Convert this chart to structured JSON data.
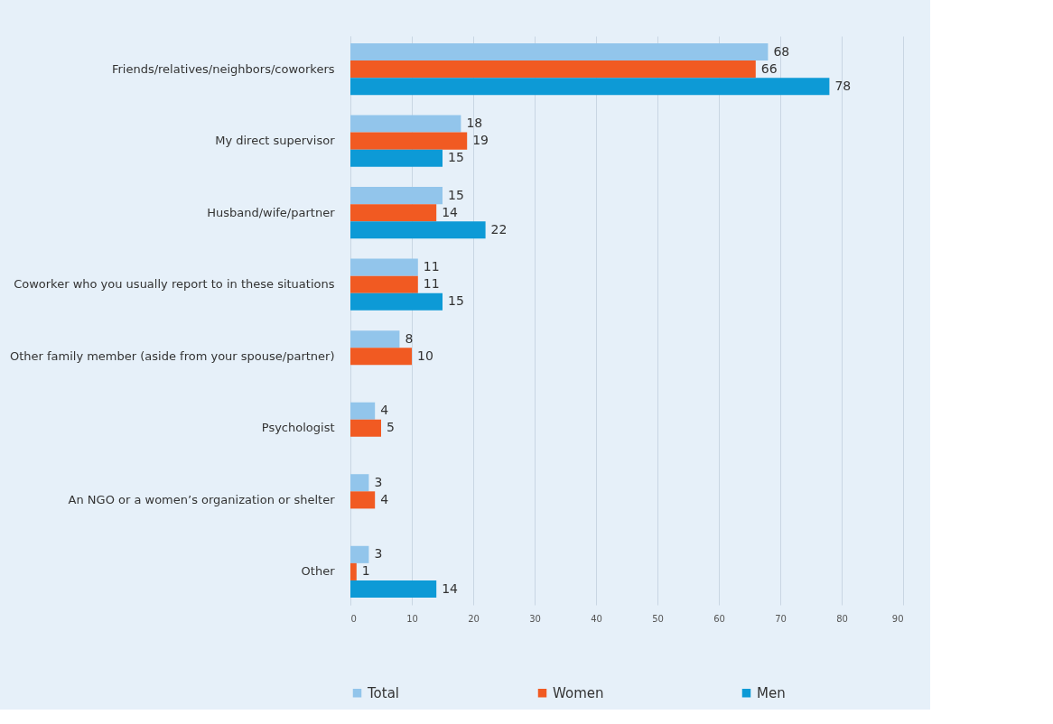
{
  "chart_data": {
    "type": "bar",
    "orientation": "horizontal",
    "categories": [
      "Friends/relatives/neighbors/coworkers",
      "My direct supervisor",
      "Husband/wife/partner",
      "Coworker who you usually report to in these situations",
      "Other family member (aside from your spouse/partner)",
      "Psychologist",
      "An NGO or a women’s organization or shelter",
      "Other"
    ],
    "series": [
      {
        "name": "Total",
        "color": "#92c5eb",
        "values": [
          68,
          18,
          15,
          11,
          8,
          4,
          3,
          3
        ]
      },
      {
        "name": "Women",
        "color": "#f15a22",
        "values": [
          66,
          19,
          14,
          11,
          10,
          5,
          4,
          1
        ]
      },
      {
        "name": "Men",
        "color": "#0d9ad6",
        "values": [
          78,
          15,
          22,
          15,
          null,
          null,
          null,
          14
        ]
      }
    ],
    "xlim": [
      0,
      90
    ],
    "xticks": [
      0,
      10,
      20,
      30,
      40,
      50,
      60,
      70,
      80,
      90
    ],
    "grid": "x",
    "legend": "bottom",
    "data_labels": true
  }
}
